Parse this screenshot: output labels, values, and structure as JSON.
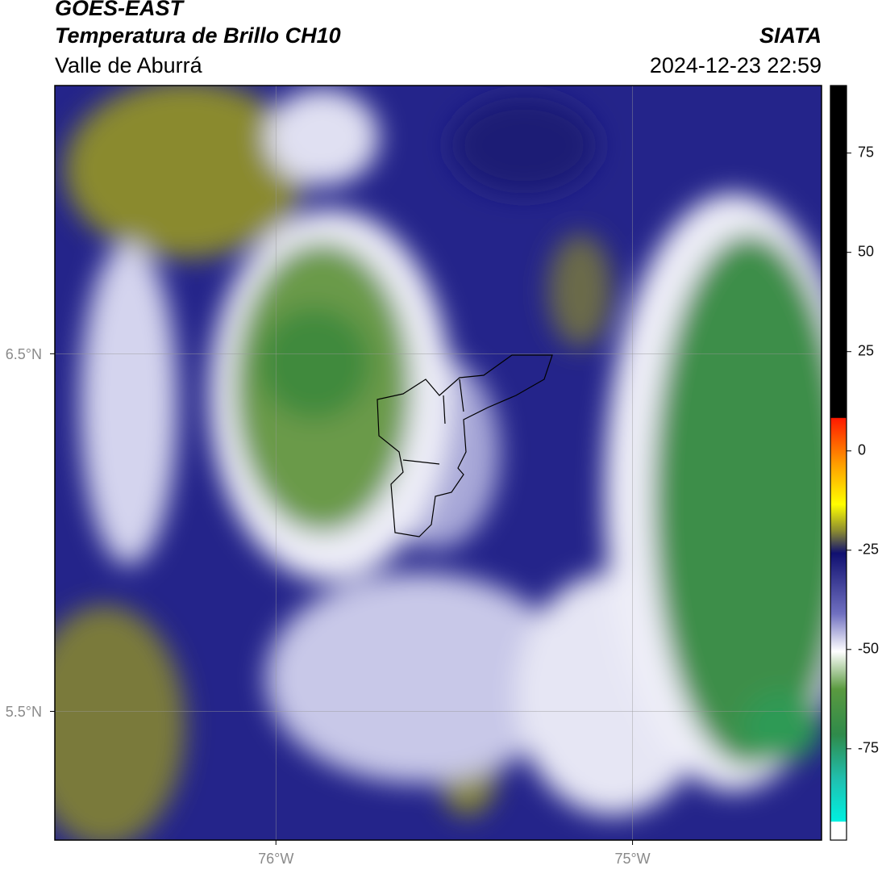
{
  "header": {
    "title": "GOES-EAST",
    "subtitle": "Temperatura de Brillo CH10",
    "region": "Valle de Aburrá",
    "source": "SIATA",
    "datetime": "2024-12-23 22:59"
  },
  "map": {
    "xlim": [
      -76.62,
      -74.47
    ],
    "ylim": [
      5.14,
      7.25
    ],
    "xticks": [
      {
        "value": -76,
        "label": "76°W"
      },
      {
        "value": -75,
        "label": "75°W"
      }
    ],
    "yticks": [
      {
        "value": 6.5,
        "label": "6.5°N"
      },
      {
        "value": 5.5,
        "label": "5.5°N"
      }
    ],
    "grid": true
  },
  "colorbar": {
    "lim": [
      -98,
      92
    ],
    "ticks": [
      75,
      50,
      25,
      0,
      -25,
      -50,
      -75
    ]
  }
}
